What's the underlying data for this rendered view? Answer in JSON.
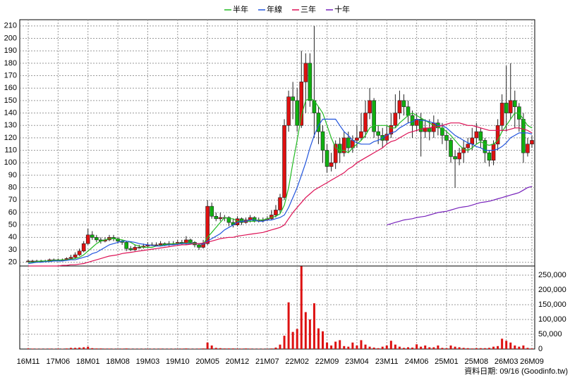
{
  "chart_data": {
    "type": "candlestick",
    "categories": [
      "16M11",
      null,
      null,
      null,
      null,
      null,
      null,
      "17M06",
      null,
      null,
      null,
      null,
      null,
      null,
      "18M01",
      null,
      null,
      null,
      null,
      null,
      null,
      "18M08",
      null,
      null,
      null,
      null,
      null,
      null,
      "19M03",
      null,
      null,
      null,
      null,
      null,
      null,
      "19M10",
      null,
      null,
      null,
      null,
      null,
      null,
      "20M05",
      null,
      null,
      null,
      null,
      null,
      null,
      "20M12",
      null,
      null,
      null,
      null,
      null,
      null,
      "21M07",
      null,
      null,
      null,
      null,
      null,
      null,
      "22M02",
      null,
      null,
      null,
      null,
      null,
      null,
      "22M09",
      null,
      null,
      null,
      null,
      null,
      null,
      "23M04",
      null,
      null,
      null,
      null,
      null,
      null,
      "23M11",
      null,
      null,
      null,
      null,
      null,
      null,
      "24M06",
      null,
      null,
      null,
      null,
      null,
      null,
      "25M01",
      null,
      null,
      null,
      null,
      null,
      null,
      "25M08",
      null,
      null,
      null,
      null,
      null,
      null,
      "26M03",
      null,
      null,
      null,
      null,
      null,
      "26M09"
    ],
    "open": [
      21,
      21,
      21,
      21,
      21,
      21,
      22,
      22,
      22,
      22,
      23,
      24,
      26,
      29,
      35,
      42,
      40,
      38,
      37,
      38,
      40,
      39,
      37,
      36,
      31,
      30,
      32,
      32,
      33,
      34,
      34,
      34,
      35,
      34,
      35,
      35,
      36,
      35,
      38,
      36,
      34,
      32,
      35,
      65,
      57,
      55,
      56,
      56,
      52,
      50,
      55,
      52,
      54,
      56,
      53,
      54,
      54,
      55,
      58,
      62,
      72,
      130,
      153,
      150,
      130,
      165,
      180,
      150,
      140,
      125,
      110,
      97,
      100,
      115,
      108,
      120,
      112,
      118,
      120,
      125,
      140,
      150,
      125,
      122,
      118,
      123,
      130,
      140,
      150,
      145,
      138,
      130,
      135,
      125,
      128,
      125,
      132,
      128,
      122,
      118,
      105,
      103,
      108,
      112,
      115,
      120,
      125,
      118,
      108,
      102,
      115,
      130,
      148,
      140,
      150,
      145,
      135,
      108,
      115
    ],
    "high": [
      22,
      22,
      22,
      22,
      22,
      23,
      23,
      23,
      23,
      24,
      26,
      28,
      31,
      37,
      47,
      45,
      42,
      40,
      40,
      42,
      42,
      40,
      38,
      37,
      33,
      34,
      34,
      35,
      36,
      36,
      36,
      37,
      36,
      37,
      37,
      38,
      38,
      41,
      39,
      37,
      35,
      38,
      70,
      68,
      60,
      60,
      58,
      57,
      55,
      57,
      56,
      56,
      58,
      57,
      56,
      56,
      57,
      62,
      66,
      75,
      135,
      158,
      165,
      160,
      190,
      188,
      188,
      210,
      145,
      130,
      115,
      108,
      118,
      120,
      125,
      125,
      122,
      130,
      140,
      150,
      160,
      152,
      130,
      128,
      130,
      140,
      155,
      158,
      155,
      150,
      142,
      140,
      140,
      135,
      135,
      138,
      135,
      132,
      126,
      120,
      110,
      112,
      118,
      120,
      128,
      132,
      128,
      120,
      110,
      118,
      135,
      155,
      178,
      180,
      158,
      148,
      140,
      120,
      122
    ],
    "low": [
      20,
      20,
      20,
      20,
      20,
      21,
      21,
      21,
      21,
      22,
      22,
      23,
      25,
      28,
      34,
      38,
      36,
      35,
      36,
      37,
      37,
      35,
      34,
      29,
      29,
      29,
      31,
      31,
      32,
      33,
      33,
      33,
      33,
      33,
      34,
      34,
      34,
      34,
      35,
      32,
      30,
      31,
      34,
      55,
      53,
      53,
      53,
      49,
      48,
      49,
      50,
      51,
      52,
      52,
      52,
      52,
      53,
      54,
      56,
      60,
      70,
      125,
      135,
      125,
      128,
      140,
      145,
      120,
      115,
      100,
      92,
      93,
      95,
      100,
      105,
      108,
      108,
      112,
      118,
      120,
      135,
      120,
      115,
      112,
      115,
      120,
      128,
      135,
      138,
      132,
      120,
      125,
      105,
      120,
      118,
      120,
      122,
      115,
      110,
      100,
      80,
      98,
      100,
      108,
      110,
      115,
      112,
      100,
      97,
      98,
      110,
      125,
      125,
      135,
      128,
      125,
      100,
      105,
      112
    ],
    "close": [
      21,
      21,
      21,
      21,
      21,
      22,
      22,
      22,
      22,
      23,
      24,
      26,
      29,
      35,
      42,
      40,
      38,
      37,
      38,
      40,
      39,
      37,
      36,
      31,
      30,
      32,
      32,
      33,
      34,
      34,
      34,
      35,
      34,
      35,
      35,
      36,
      35,
      38,
      36,
      34,
      32,
      35,
      65,
      57,
      55,
      56,
      56,
      52,
      50,
      55,
      52,
      54,
      56,
      53,
      54,
      54,
      55,
      58,
      62,
      72,
      130,
      153,
      150,
      130,
      165,
      180,
      150,
      140,
      125,
      110,
      97,
      100,
      115,
      108,
      120,
      112,
      118,
      120,
      125,
      140,
      150,
      125,
      122,
      118,
      123,
      130,
      140,
      150,
      145,
      138,
      130,
      135,
      125,
      128,
      125,
      132,
      128,
      122,
      118,
      105,
      103,
      108,
      112,
      115,
      120,
      125,
      118,
      108,
      102,
      115,
      130,
      148,
      140,
      150,
      145,
      135,
      108,
      115,
      118
    ],
    "up_color": "#e01010",
    "down_color": "#10b010",
    "series": [
      {
        "name": "半年",
        "color": "#22bb22",
        "values": [
          20,
          20,
          20.5,
          21,
          21,
          21,
          21.5,
          21.5,
          22,
          22,
          22.5,
          23,
          24,
          26,
          29,
          32,
          35,
          37,
          38,
          39,
          39,
          38.5,
          38,
          37,
          36,
          34,
          33,
          32,
          32,
          32,
          33,
          33.5,
          34,
          34.5,
          35,
          35,
          35,
          35.5,
          35.5,
          35,
          35,
          34.5,
          40,
          44,
          48,
          52,
          56,
          55,
          55,
          53,
          53,
          53,
          53,
          53,
          54,
          54,
          55,
          56,
          57,
          59,
          66,
          80,
          100,
          118,
          138,
          150,
          152,
          150,
          145,
          140,
          130,
          120,
          112,
          110,
          110,
          108,
          112,
          115,
          118,
          122,
          128,
          130,
          130,
          130,
          130,
          128,
          128,
          132,
          135,
          138,
          140,
          138,
          136,
          134,
          132,
          130,
          128,
          128,
          125,
          122,
          118,
          114,
          111,
          110,
          112,
          115,
          117,
          115,
          114,
          115,
          118,
          125,
          130,
          135,
          140,
          140,
          135,
          130,
          128
        ]
      },
      {
        "name": "年線",
        "color": "#2255dd",
        "values": [
          19,
          19.5,
          20,
          20,
          20.5,
          20.5,
          21,
          21,
          21,
          21.5,
          22,
          22,
          23,
          24,
          25,
          27,
          28,
          30,
          32,
          34,
          35,
          36,
          37,
          37,
          36.5,
          36,
          35,
          34.5,
          34,
          33.5,
          33,
          33,
          33.5,
          34,
          34,
          34.5,
          35,
          35,
          35,
          35,
          35,
          34.5,
          37,
          39,
          41,
          43,
          46,
          48,
          50,
          52,
          53,
          53,
          54,
          54,
          53,
          53,
          54,
          54,
          55,
          56,
          58,
          64,
          72,
          80,
          90,
          100,
          112,
          122,
          130,
          135,
          135,
          135,
          135,
          130,
          125,
          122,
          118,
          116,
          115,
          115,
          115,
          117,
          118,
          120,
          122,
          124,
          125,
          128,
          130,
          132,
          133,
          135,
          134,
          134,
          133,
          132,
          130,
          130,
          128,
          125,
          122,
          120,
          118,
          116,
          115,
          113,
          112,
          110,
          110,
          110,
          111,
          113,
          116,
          120,
          122,
          124,
          124,
          124,
          123
        ]
      },
      {
        "name": "三年",
        "color": "#dd1155",
        "values": [
          17,
          17,
          17,
          17,
          17,
          17,
          17,
          17,
          17.5,
          17.5,
          18,
          18,
          18.5,
          19,
          20,
          21,
          22,
          23,
          24,
          25,
          25.5,
          26,
          27,
          27.5,
          28,
          28.5,
          29,
          29.5,
          30,
          30.5,
          31,
          31.5,
          32,
          32.5,
          33,
          33.5,
          34,
          34,
          34.5,
          35,
          35,
          35.5,
          36,
          37,
          38,
          39,
          39.5,
          40,
          40,
          41,
          41.5,
          42,
          42.5,
          43,
          43.5,
          44,
          45,
          46,
          47,
          48,
          50,
          55,
          60,
          64,
          68,
          72,
          75,
          78,
          80,
          82,
          84,
          86,
          88,
          90,
          92,
          95,
          97,
          100,
          102,
          104,
          106,
          108,
          110,
          112,
          115,
          117,
          118,
          120,
          122,
          124,
          125,
          126,
          127,
          128,
          128,
          129,
          129,
          130,
          131,
          132,
          132,
          132,
          131,
          130,
          130,
          129,
          128,
          127,
          126,
          126,
          126,
          126,
          126,
          127,
          128,
          128,
          127,
          126,
          124
        ]
      },
      {
        "name": "十年",
        "color": "#7722bb",
        "values": [
          null,
          null,
          null,
          null,
          null,
          null,
          null,
          null,
          null,
          null,
          null,
          null,
          null,
          null,
          null,
          null,
          null,
          null,
          null,
          null,
          null,
          null,
          null,
          null,
          null,
          null,
          null,
          null,
          null,
          null,
          null,
          null,
          null,
          null,
          null,
          null,
          null,
          null,
          null,
          null,
          null,
          null,
          null,
          null,
          null,
          null,
          null,
          null,
          null,
          null,
          null,
          null,
          null,
          null,
          null,
          null,
          null,
          null,
          null,
          null,
          null,
          null,
          null,
          null,
          null,
          null,
          null,
          null,
          null,
          null,
          null,
          null,
          null,
          null,
          null,
          null,
          null,
          null,
          null,
          null,
          null,
          null,
          null,
          null,
          50,
          51,
          52,
          53,
          54,
          54.5,
          55,
          56,
          56.5,
          57,
          58,
          59,
          60,
          60.5,
          61,
          62,
          63,
          64,
          64.5,
          65,
          66,
          67,
          68,
          68.5,
          69,
          70,
          71,
          72,
          73,
          74,
          75,
          76,
          78,
          80,
          81
        ]
      }
    ],
    "ylim": [
      17,
      215
    ],
    "yticks": [
      20,
      30,
      40,
      50,
      60,
      70,
      80,
      90,
      100,
      110,
      120,
      130,
      140,
      150,
      160,
      170,
      180,
      190,
      200,
      210
    ],
    "grid": true,
    "volume": {
      "color": "#dd1111",
      "values": [
        2000,
        1500,
        1000,
        1000,
        1000,
        1500,
        1000,
        1500,
        1000,
        2000,
        4000,
        4000,
        5000,
        6000,
        8000,
        3000,
        2000,
        2000,
        1500,
        1500,
        1000,
        1000,
        1500,
        2000,
        1000,
        1000,
        1000,
        1000,
        1000,
        1000,
        1000,
        1500,
        1000,
        1000,
        1000,
        1000,
        1500,
        2000,
        1000,
        1000,
        1500,
        2000,
        22000,
        12000,
        4000,
        3000,
        2000,
        2000,
        2000,
        1500,
        1500,
        2000,
        1500,
        1000,
        1000,
        1000,
        1000,
        2000,
        5000,
        15000,
        45000,
        158000,
        58000,
        68000,
        280000,
        125000,
        100000,
        155000,
        70000,
        60000,
        22000,
        12000,
        25000,
        30000,
        10000,
        8000,
        22000,
        12000,
        30000,
        15000,
        8000,
        5000,
        3000,
        8000,
        12000,
        28000,
        15000,
        8000,
        4000,
        6000,
        5000,
        16000,
        8000,
        12000,
        6000,
        6000,
        12000,
        4000,
        3000,
        12000,
        8000,
        6000,
        4000,
        3000,
        2000,
        3000,
        3000,
        3000,
        4000,
        8000,
        10000,
        35000,
        28000,
        22000,
        12000,
        8000,
        12000,
        4000,
        2000
      ],
      "ylim": [
        0,
        281000
      ],
      "yticks": [
        0,
        {
          "value": 50000,
          "label": "50,000"
        },
        {
          "value": 100000,
          "label": "100,000"
        },
        {
          "value": 150000,
          "label": "150,000"
        },
        {
          "value": 200000,
          "label": "200,000"
        },
        {
          "value": 250000,
          "label": "250,000"
        }
      ]
    },
    "footer": "資料日期: 09/16 (Goodinfo.tw)"
  }
}
